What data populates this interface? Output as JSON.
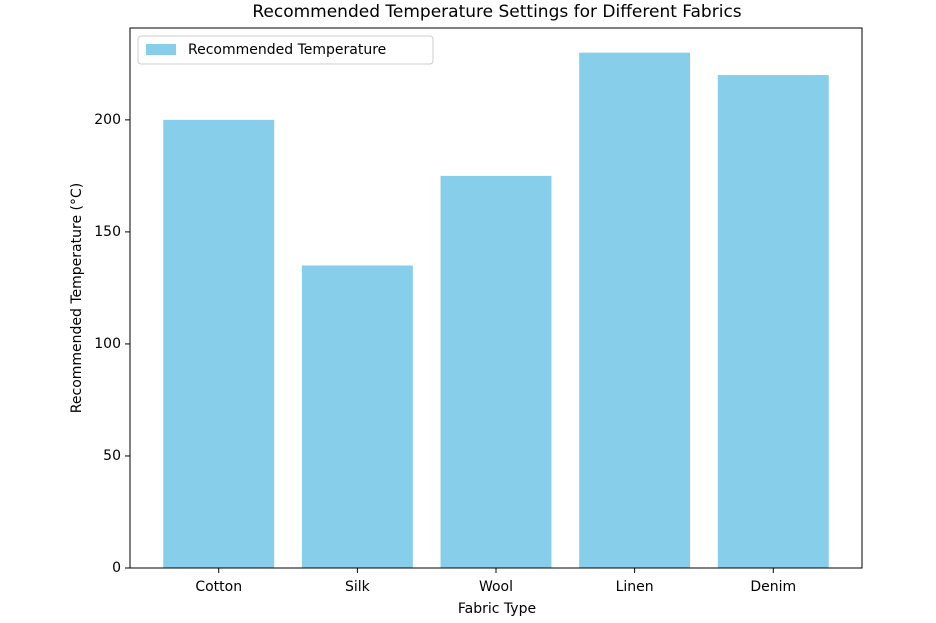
{
  "chart_data": {
    "type": "bar",
    "title": "Recommended Temperature Settings for Different Fabrics",
    "x_label": "Fabric Type",
    "y_label": "Recommended Temperature (°C)",
    "categories": [
      "Cotton",
      "Silk",
      "Wool",
      "Linen",
      "Denim"
    ],
    "series": [
      {
        "name": "Recommended Temperature",
        "color": "#87ceeb",
        "values": [
          200,
          135,
          175,
          230,
          220
        ]
      }
    ],
    "ylim": [
      0,
      241
    ],
    "yticks": [
      0,
      50,
      100,
      150,
      200
    ],
    "grid": false,
    "legend": "upper left"
  }
}
